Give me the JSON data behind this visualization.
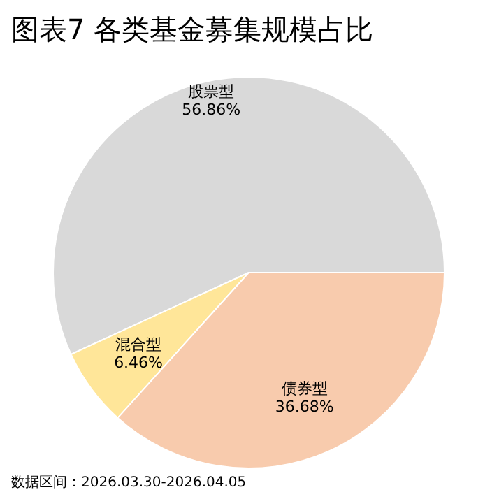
{
  "chart_data": {
    "type": "pie",
    "title": "图表7 各类基金募集规模占比",
    "categories": [
      "股票型",
      "混合型",
      "债券型"
    ],
    "values": [
      56.86,
      6.46,
      36.68
    ],
    "value_labels": [
      "56.86%",
      "6.46%",
      "36.68%"
    ],
    "colors": [
      "#d9d9d9",
      "#ffe699",
      "#f8cbad"
    ],
    "annotations": [
      "数据区间：2026.03.30-2026.04.05"
    ]
  }
}
